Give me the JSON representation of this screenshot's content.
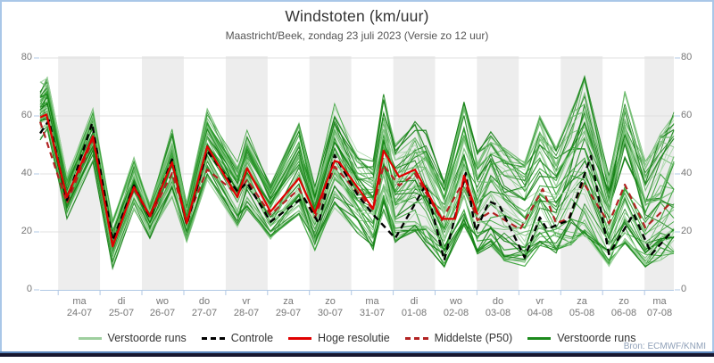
{
  "header": {
    "title": "Windstoten (km/uur)",
    "subtitle": "Maastricht/Beek, zondag 23 juli 2023 (Versie zo 12 uur)"
  },
  "source_label": "Bron: ECMWF/KNMI",
  "colors": {
    "frame_border": "#a9c7e8",
    "bottom_edge_blue": "#5b86bb",
    "bottom_edge_dark": "#17172f",
    "day_band": "#ededed",
    "gridline": "#e0e0e0",
    "axis_blue": "#b0c8e4",
    "control": "#000000",
    "hires": "#e00000",
    "p50": "#b22222",
    "ensemble_palette": [
      "#a5d6a5",
      "#6dbb6d",
      "#2f9e2f",
      "#128012"
    ]
  },
  "chart_data": {
    "type": "line",
    "title": "Windstoten (km/uur)",
    "subtitle": "Maastricht/Beek, zondag 23 juli 2023 (Versie zo 12 uur)",
    "ylabel": "km/uur",
    "ylim": [
      0,
      80
    ],
    "y_ticks": [
      0,
      20,
      40,
      60,
      80
    ],
    "grid": true,
    "days_span": 15.13,
    "tick_offset_days": 0.43,
    "x_ticks": [
      {
        "day": "ma",
        "date": "24-07"
      },
      {
        "day": "di",
        "date": "25-07"
      },
      {
        "day": "wo",
        "date": "26-07"
      },
      {
        "day": "do",
        "date": "27-07"
      },
      {
        "day": "vr",
        "date": "28-07"
      },
      {
        "day": "za",
        "date": "29-07"
      },
      {
        "day": "zo",
        "date": "30-07"
      },
      {
        "day": "ma",
        "date": "31-07"
      },
      {
        "day": "di",
        "date": "01-08"
      },
      {
        "day": "wo",
        "date": "02-08"
      },
      {
        "day": "do",
        "date": "03-08"
      },
      {
        "day": "vr",
        "date": "04-08"
      },
      {
        "day": "za",
        "date": "05-08"
      },
      {
        "day": "zo",
        "date": "06-08"
      },
      {
        "day": "ma",
        "date": "07-08"
      }
    ],
    "series": [
      {
        "name": "Controle",
        "style": "dashed",
        "color": "#000000",
        "points": [
          [
            0,
            54
          ],
          [
            0.21,
            58.5
          ],
          [
            0.64,
            31
          ],
          [
            1.24,
            57.5
          ],
          [
            1.73,
            17
          ],
          [
            2.24,
            36
          ],
          [
            2.62,
            25
          ],
          [
            3.15,
            45
          ],
          [
            3.5,
            22.5
          ],
          [
            3.99,
            48
          ],
          [
            4.71,
            34
          ],
          [
            4.94,
            37
          ],
          [
            5.5,
            23.5
          ],
          [
            6.29,
            32
          ],
          [
            6.65,
            23
          ],
          [
            7.03,
            46.5
          ],
          [
            7.57,
            33
          ],
          [
            7.95,
            26
          ],
          [
            8.48,
            17.8
          ],
          [
            9.21,
            36.3
          ],
          [
            9.65,
            10.2
          ],
          [
            10.16,
            40.3
          ],
          [
            10.4,
            20.3
          ],
          [
            10.72,
            30.5
          ],
          [
            10.97,
            29
          ],
          [
            11.57,
            11.1
          ],
          [
            11.93,
            25
          ],
          [
            12.1,
            21
          ],
          [
            12.62,
            24
          ],
          [
            13.15,
            46.2
          ],
          [
            13.58,
            12.3
          ],
          [
            14.17,
            26.2
          ],
          [
            14.6,
            12.3
          ],
          [
            15.09,
            20.3
          ]
        ]
      },
      {
        "name": "Hoge resolutie",
        "style": "solid",
        "color": "#e00000",
        "points": [
          [
            0,
            59.5
          ],
          [
            0.15,
            60.5
          ],
          [
            0.64,
            32
          ],
          [
            1.26,
            53
          ],
          [
            1.73,
            15
          ],
          [
            2.24,
            35.5
          ],
          [
            2.62,
            25.5
          ],
          [
            3.15,
            44
          ],
          [
            3.5,
            23
          ],
          [
            3.99,
            49.5
          ],
          [
            4.71,
            32
          ],
          [
            4.94,
            42
          ],
          [
            5.5,
            27
          ],
          [
            6.18,
            38.5
          ],
          [
            6.56,
            26.5
          ],
          [
            7.03,
            44.5
          ],
          [
            7.14,
            44
          ],
          [
            7.95,
            28
          ],
          [
            8.2,
            48
          ],
          [
            8.57,
            39
          ],
          [
            8.95,
            41.5
          ],
          [
            9.59,
            24.5
          ],
          [
            9.91,
            24.5
          ],
          [
            10.12,
            39.4
          ],
          [
            10.44,
            26
          ]
        ]
      },
      {
        "name": "Middelste (P50)",
        "style": "dashed",
        "color": "#b22222",
        "points": [
          [
            0,
            58
          ],
          [
            0.64,
            30
          ],
          [
            1.26,
            52
          ],
          [
            1.73,
            16
          ],
          [
            2.24,
            35
          ],
          [
            2.62,
            25
          ],
          [
            3.15,
            40.3
          ],
          [
            3.5,
            24
          ],
          [
            3.99,
            41.5
          ],
          [
            4.71,
            33
          ],
          [
            4.94,
            38
          ],
          [
            5.5,
            26
          ],
          [
            6.18,
            34.8
          ],
          [
            6.56,
            25
          ],
          [
            7.03,
            42.5
          ],
          [
            7.95,
            27.7
          ],
          [
            8.2,
            43
          ],
          [
            8.57,
            36
          ],
          [
            8.95,
            40
          ],
          [
            9.59,
            24
          ],
          [
            10.12,
            37.8
          ],
          [
            10.44,
            24
          ],
          [
            10.76,
            27
          ],
          [
            11.46,
            20.9
          ],
          [
            12,
            34.8
          ],
          [
            12.32,
            23
          ],
          [
            12.62,
            24.6
          ],
          [
            12.96,
            37.2
          ],
          [
            13.58,
            23
          ],
          [
            13.96,
            36.3
          ],
          [
            14.45,
            21.5
          ],
          [
            15.07,
            30.2
          ]
        ]
      }
    ],
    "ensemble": {
      "name": "Verstoorde runs",
      "count": 50,
      "envelope": [
        [
          0,
          52,
          72
        ],
        [
          0.17,
          55,
          74
        ],
        [
          0.64,
          25,
          40
        ],
        [
          1.26,
          44,
          62
        ],
        [
          1.73,
          8,
          24
        ],
        [
          2.24,
          27,
          45
        ],
        [
          2.62,
          18,
          30
        ],
        [
          3.15,
          32,
          55
        ],
        [
          3.5,
          16,
          30
        ],
        [
          3.99,
          38,
          62
        ],
        [
          4.71,
          22,
          44
        ],
        [
          4.94,
          28,
          55
        ],
        [
          5.5,
          17,
          36
        ],
        [
          6.18,
          26,
          58
        ],
        [
          6.56,
          14,
          36
        ],
        [
          7.03,
          28,
          65
        ],
        [
          7.57,
          20,
          50
        ],
        [
          7.95,
          14,
          45
        ],
        [
          8.2,
          26,
          68
        ],
        [
          8.48,
          15,
          50
        ],
        [
          8.95,
          20,
          58
        ],
        [
          9.21,
          15,
          55
        ],
        [
          9.65,
          7,
          38
        ],
        [
          10.12,
          22,
          65
        ],
        [
          10.44,
          12,
          48
        ],
        [
          10.76,
          15,
          55
        ],
        [
          11.08,
          10,
          50
        ],
        [
          11.57,
          8,
          45
        ],
        [
          11.93,
          15,
          60
        ],
        [
          12.32,
          12,
          50
        ],
        [
          12.68,
          15,
          62
        ],
        [
          13,
          18,
          75
        ],
        [
          13.58,
          8,
          40
        ],
        [
          13.96,
          15,
          70
        ],
        [
          14.45,
          8,
          45
        ],
        [
          14.81,
          10,
          55
        ],
        [
          15.13,
          12,
          62
        ]
      ]
    },
    "legend_position": "bottom"
  },
  "legend": {
    "items": [
      {
        "label": "Verstoorde runs",
        "color": "#9ecf9e",
        "dash": false
      },
      {
        "label": "Controle",
        "color": "#000000",
        "dash": true
      },
      {
        "label": "Hoge resolutie",
        "color": "#e00000",
        "dash": false
      },
      {
        "label": "Middelste (P50)",
        "color": "#b22222",
        "dash": true
      },
      {
        "label": "Verstoorde runs",
        "color": "#1c8a1c",
        "dash": false
      }
    ]
  }
}
